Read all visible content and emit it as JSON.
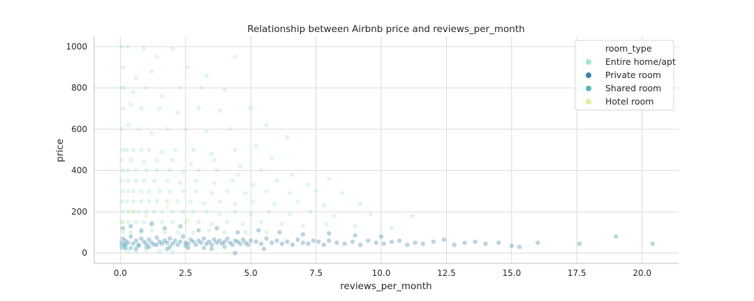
{
  "chart_data": {
    "type": "scatter",
    "title": "Relationship between Airbnb price and reviews_per_month",
    "xlabel": "reviews_per_month",
    "ylabel": "price",
    "xlim": [
      -1.0,
      21.4
    ],
    "ylim": [
      -50,
      1050
    ],
    "xticks": [
      0.0,
      2.5,
      5.0,
      7.5,
      10.0,
      12.5,
      15.0,
      17.5,
      20.0
    ],
    "xtick_labels": [
      "0.0",
      "2.5",
      "5.0",
      "7.5",
      "10.0",
      "12.5",
      "15.0",
      "17.5",
      "20.0"
    ],
    "yticks": [
      0,
      200,
      400,
      600,
      800,
      1000
    ],
    "ytick_labels": [
      "0",
      "200",
      "400",
      "600",
      "800",
      "1000"
    ],
    "grid": true,
    "legend_position": "top-right",
    "legend_title": "room_type",
    "series": [
      {
        "name": "Entire home/apt",
        "color": "#a6e6d0",
        "points": [
          [
            0.05,
            1000
          ],
          [
            0.3,
            1000
          ],
          [
            0.9,
            990
          ],
          [
            1.4,
            950
          ],
          [
            2.0,
            990
          ],
          [
            4.4,
            950
          ],
          [
            0.1,
            900
          ],
          [
            0.6,
            850
          ],
          [
            1.2,
            880
          ],
          [
            2.6,
            900
          ],
          [
            3.3,
            860
          ],
          [
            0.05,
            800
          ],
          [
            0.15,
            800
          ],
          [
            0.5,
            780
          ],
          [
            1.0,
            800
          ],
          [
            1.6,
            760
          ],
          [
            2.3,
            800
          ],
          [
            3.1,
            800
          ],
          [
            4.0,
            790
          ],
          [
            0.1,
            700
          ],
          [
            0.4,
            720
          ],
          [
            0.8,
            700
          ],
          [
            1.5,
            700
          ],
          [
            2.2,
            680
          ],
          [
            3.0,
            700
          ],
          [
            3.8,
            690
          ],
          [
            5.0,
            700
          ],
          [
            0.05,
            600
          ],
          [
            0.3,
            620
          ],
          [
            0.7,
            600
          ],
          [
            1.2,
            580
          ],
          [
            1.8,
            600
          ],
          [
            2.5,
            600
          ],
          [
            3.3,
            590
          ],
          [
            4.2,
            600
          ],
          [
            5.6,
            620
          ],
          [
            0.1,
            500
          ],
          [
            0.25,
            500
          ],
          [
            0.5,
            500
          ],
          [
            0.8,
            500
          ],
          [
            1.1,
            500
          ],
          [
            1.6,
            490
          ],
          [
            2.1,
            500
          ],
          [
            2.8,
            500
          ],
          [
            3.5,
            480
          ],
          [
            4.4,
            500
          ],
          [
            5.2,
            520
          ],
          [
            6.4,
            560
          ],
          [
            0.05,
            450
          ],
          [
            0.4,
            450
          ],
          [
            0.9,
            440
          ],
          [
            1.4,
            450
          ],
          [
            2.0,
            450
          ],
          [
            2.7,
            430
          ],
          [
            3.6,
            450
          ],
          [
            4.6,
            420
          ],
          [
            5.8,
            460
          ],
          [
            0.1,
            400
          ],
          [
            0.3,
            400
          ],
          [
            0.6,
            400
          ],
          [
            1.0,
            400
          ],
          [
            1.4,
            400
          ],
          [
            1.9,
            400
          ],
          [
            2.4,
            390
          ],
          [
            3.0,
            400
          ],
          [
            3.7,
            400
          ],
          [
            4.5,
            380
          ],
          [
            5.4,
            400
          ],
          [
            6.6,
            380
          ],
          [
            8.0,
            360
          ],
          [
            0.05,
            350
          ],
          [
            0.3,
            350
          ],
          [
            0.6,
            350
          ],
          [
            0.9,
            350
          ],
          [
            1.3,
            350
          ],
          [
            1.8,
            350
          ],
          [
            2.3,
            340
          ],
          [
            2.9,
            350
          ],
          [
            3.6,
            340
          ],
          [
            4.3,
            350
          ],
          [
            5.1,
            330
          ],
          [
            6.0,
            350
          ],
          [
            7.2,
            330
          ],
          [
            0.1,
            300
          ],
          [
            0.3,
            300
          ],
          [
            0.5,
            300
          ],
          [
            0.8,
            300
          ],
          [
            1.1,
            300
          ],
          [
            1.5,
            300
          ],
          [
            1.9,
            300
          ],
          [
            2.4,
            300
          ],
          [
            2.9,
            300
          ],
          [
            3.5,
            290
          ],
          [
            4.1,
            300
          ],
          [
            4.8,
            290
          ],
          [
            5.6,
            300
          ],
          [
            6.5,
            290
          ],
          [
            7.5,
            300
          ],
          [
            8.5,
            290
          ],
          [
            0.05,
            250
          ],
          [
            0.25,
            250
          ],
          [
            0.5,
            250
          ],
          [
            0.8,
            250
          ],
          [
            1.1,
            250
          ],
          [
            1.4,
            250
          ],
          [
            1.8,
            250
          ],
          [
            2.2,
            250
          ],
          [
            2.7,
            250
          ],
          [
            3.2,
            240
          ],
          [
            3.8,
            250
          ],
          [
            4.4,
            240
          ],
          [
            5.1,
            250
          ],
          [
            5.9,
            240
          ],
          [
            6.8,
            250
          ],
          [
            7.8,
            230
          ],
          [
            9.2,
            240
          ],
          [
            0.1,
            200
          ],
          [
            0.3,
            200
          ],
          [
            0.5,
            200
          ],
          [
            0.7,
            200
          ],
          [
            1.0,
            200
          ],
          [
            1.3,
            200
          ],
          [
            1.6,
            200
          ],
          [
            2.0,
            200
          ],
          [
            2.4,
            200
          ],
          [
            2.8,
            200
          ],
          [
            3.3,
            200
          ],
          [
            3.8,
            190
          ],
          [
            4.4,
            200
          ],
          [
            5.0,
            190
          ],
          [
            5.7,
            200
          ],
          [
            6.5,
            190
          ],
          [
            7.3,
            200
          ],
          [
            8.2,
            180
          ],
          [
            9.6,
            190
          ],
          [
            11.2,
            180
          ],
          [
            0.05,
            150
          ],
          [
            0.3,
            150
          ],
          [
            0.6,
            150
          ],
          [
            0.9,
            150
          ],
          [
            1.2,
            150
          ],
          [
            1.6,
            150
          ],
          [
            2.0,
            150
          ],
          [
            2.5,
            150
          ],
          [
            3.0,
            150
          ],
          [
            3.5,
            140
          ],
          [
            4.1,
            150
          ],
          [
            4.7,
            140
          ],
          [
            5.4,
            150
          ],
          [
            6.2,
            140
          ],
          [
            7.0,
            130
          ],
          [
            7.9,
            140
          ],
          [
            9.0,
            130
          ],
          [
            10.4,
            120
          ],
          [
            0.1,
            100
          ],
          [
            0.4,
            100
          ],
          [
            0.8,
            100
          ],
          [
            1.2,
            110
          ],
          [
            1.7,
            100
          ],
          [
            2.2,
            100
          ],
          [
            2.8,
            100
          ],
          [
            3.4,
            110
          ],
          [
            4.0,
            100
          ],
          [
            4.8,
            100
          ],
          [
            5.6,
            100
          ],
          [
            0.1,
            20
          ],
          [
            0.3,
            10
          ],
          [
            0.6,
            5
          ],
          [
            1.0,
            15
          ],
          [
            1.5,
            10
          ],
          [
            2.0,
            5
          ]
        ]
      },
      {
        "name": "Private room",
        "color": "#3b84a8",
        "points": [
          [
            0.05,
            50
          ],
          [
            0.1,
            70
          ],
          [
            0.15,
            40
          ],
          [
            0.2,
            60
          ],
          [
            0.3,
            50
          ],
          [
            0.4,
            80
          ],
          [
            0.5,
            45
          ],
          [
            0.6,
            60
          ],
          [
            0.7,
            40
          ],
          [
            0.8,
            70
          ],
          [
            0.9,
            55
          ],
          [
            1.0,
            45
          ],
          [
            1.1,
            65
          ],
          [
            1.2,
            50
          ],
          [
            1.3,
            40
          ],
          [
            1.4,
            75
          ],
          [
            1.5,
            55
          ],
          [
            1.6,
            45
          ],
          [
            1.7,
            60
          ],
          [
            1.8,
            50
          ],
          [
            1.9,
            70
          ],
          [
            2.0,
            45
          ],
          [
            2.1,
            60
          ],
          [
            2.2,
            40
          ],
          [
            2.3,
            55
          ],
          [
            2.4,
            80
          ],
          [
            2.5,
            50
          ],
          [
            2.6,
            45
          ],
          [
            2.7,
            65
          ],
          [
            2.8,
            55
          ],
          [
            2.9,
            40
          ],
          [
            3.0,
            60
          ],
          [
            3.1,
            50
          ],
          [
            3.2,
            70
          ],
          [
            3.3,
            45
          ],
          [
            3.4,
            55
          ],
          [
            3.5,
            40
          ],
          [
            3.6,
            65
          ],
          [
            3.7,
            50
          ],
          [
            3.8,
            60
          ],
          [
            3.9,
            45
          ],
          [
            4.0,
            55
          ],
          [
            4.1,
            70
          ],
          [
            4.2,
            50
          ],
          [
            4.3,
            40
          ],
          [
            4.4,
            60
          ],
          [
            4.5,
            55
          ],
          [
            4.6,
            45
          ],
          [
            4.7,
            65
          ],
          [
            4.8,
            50
          ],
          [
            4.9,
            40
          ],
          [
            5.0,
            60
          ],
          [
            5.2,
            55
          ],
          [
            5.4,
            45
          ],
          [
            5.6,
            70
          ],
          [
            5.8,
            50
          ],
          [
            6.0,
            60
          ],
          [
            6.2,
            45
          ],
          [
            6.4,
            55
          ],
          [
            6.6,
            40
          ],
          [
            6.8,
            65
          ],
          [
            7.0,
            50
          ],
          [
            7.2,
            45
          ],
          [
            7.4,
            60
          ],
          [
            7.6,
            55
          ],
          [
            7.8,
            40
          ],
          [
            8.0,
            60
          ],
          [
            8.3,
            50
          ],
          [
            8.6,
            45
          ],
          [
            8.9,
            55
          ],
          [
            9.2,
            40
          ],
          [
            9.5,
            60
          ],
          [
            9.8,
            50
          ],
          [
            10.1,
            45
          ],
          [
            10.4,
            55
          ],
          [
            10.7,
            60
          ],
          [
            11.0,
            40
          ],
          [
            11.3,
            50
          ],
          [
            11.6,
            45
          ],
          [
            12.0,
            55
          ],
          [
            12.4,
            65
          ],
          [
            12.8,
            40
          ],
          [
            13.2,
            50
          ],
          [
            13.6,
            55
          ],
          [
            14.0,
            45
          ],
          [
            14.5,
            50
          ],
          [
            15.0,
            35
          ],
          [
            15.3,
            30
          ],
          [
            16.0,
            50
          ],
          [
            17.6,
            45
          ],
          [
            19.0,
            80
          ],
          [
            20.4,
            45
          ],
          [
            0.1,
            120
          ],
          [
            0.4,
            130
          ],
          [
            0.8,
            110
          ],
          [
            1.2,
            140
          ],
          [
            1.7,
            120
          ],
          [
            2.3,
            130
          ],
          [
            3.0,
            110
          ],
          [
            3.7,
            120
          ],
          [
            4.5,
            100
          ],
          [
            5.3,
            110
          ],
          [
            6.1,
            100
          ],
          [
            7.0,
            90
          ],
          [
            8.0,
            95
          ],
          [
            9.0,
            85
          ],
          [
            10.0,
            80
          ],
          [
            0.2,
            25
          ],
          [
            0.6,
            20
          ],
          [
            1.1,
            30
          ],
          [
            1.8,
            20
          ],
          [
            2.6,
            25
          ],
          [
            3.5,
            20
          ],
          [
            4.4,
            0
          ],
          [
            5.5,
            20
          ]
        ]
      },
      {
        "name": "Shared room",
        "color": "#5ab4b8",
        "points": [
          [
            0.05,
            30
          ],
          [
            0.2,
            40
          ],
          [
            0.4,
            25
          ],
          [
            0.7,
            35
          ],
          [
            1.0,
            30
          ],
          [
            1.4,
            40
          ],
          [
            1.9,
            30
          ],
          [
            2.5,
            35
          ],
          [
            3.2,
            25
          ],
          [
            4.0,
            30
          ]
        ]
      },
      {
        "name": "Hotel room",
        "color": "#d7f2a0",
        "points": [
          [
            0.1,
            150
          ],
          [
            0.5,
            200
          ],
          [
            1.0,
            180
          ],
          [
            1.8,
            220
          ],
          [
            2.6,
            160
          ]
        ]
      }
    ]
  }
}
